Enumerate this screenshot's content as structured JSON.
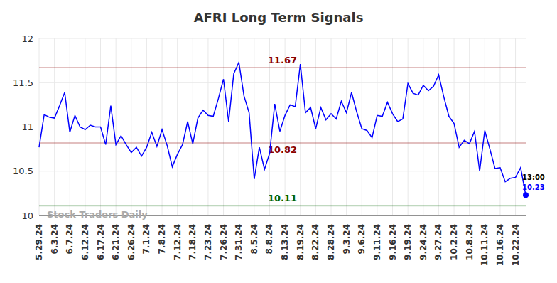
{
  "chart_data": {
    "type": "line",
    "title": "AFRI Long Term Signals",
    "watermark": "Stock Traders Daily",
    "end_label": "13:00",
    "categories": [
      "5.29.24",
      null,
      null,
      "6.3.24",
      null,
      null,
      "6.7.24",
      null,
      null,
      "6.12.24",
      null,
      null,
      "6.17.24",
      null,
      null,
      "6.21.24",
      null,
      null,
      "6.26.24",
      null,
      null,
      "7.1.24",
      null,
      null,
      "7.8.24",
      null,
      null,
      "7.12.24",
      null,
      null,
      "7.18.24",
      null,
      null,
      "7.23.24",
      null,
      null,
      "7.26.24",
      null,
      null,
      "7.31.24",
      null,
      null,
      "8.5.24",
      null,
      null,
      "8.8.24",
      null,
      null,
      "8.13.24",
      null,
      null,
      "8.19.24",
      null,
      null,
      "8.22.24",
      null,
      null,
      "8.28.24",
      null,
      null,
      "9.3.24",
      null,
      null,
      "9.6.24",
      null,
      null,
      "9.11.24",
      null,
      null,
      "9.16.24",
      null,
      null,
      "9.19.24",
      null,
      null,
      "9.24.24",
      null,
      null,
      "9.27.24",
      null,
      null,
      "10.2.24",
      null,
      null,
      "10.8.24",
      null,
      null,
      "10.11.24",
      null,
      null,
      "10.16.24",
      null,
      null,
      "10.22.24",
      null,
      null
    ],
    "values": [
      10.77,
      11.14,
      11.11,
      11.1,
      11.24,
      11.39,
      10.94,
      11.13,
      11.0,
      10.97,
      11.02,
      11.0,
      11.0,
      10.8,
      11.24,
      10.8,
      10.9,
      10.8,
      10.71,
      10.77,
      10.67,
      10.77,
      10.94,
      10.78,
      10.97,
      10.79,
      10.55,
      10.69,
      10.8,
      11.06,
      10.81,
      11.1,
      11.19,
      11.13,
      11.12,
      11.32,
      11.54,
      11.06,
      11.6,
      11.73,
      11.35,
      11.16,
      10.41,
      10.77,
      10.52,
      10.7,
      11.26,
      10.95,
      11.13,
      11.25,
      11.23,
      11.71,
      11.16,
      11.22,
      10.98,
      11.22,
      11.08,
      11.15,
      11.09,
      11.29,
      11.16,
      11.39,
      11.17,
      10.98,
      10.96,
      10.88,
      11.13,
      11.12,
      11.28,
      11.15,
      11.06,
      11.09,
      11.49,
      11.38,
      11.36,
      11.47,
      11.41,
      11.46,
      11.59,
      11.34,
      11.12,
      11.04,
      10.77,
      10.85,
      10.81,
      10.95,
      10.5,
      10.96,
      10.75,
      10.53,
      10.54,
      10.38,
      10.42,
      10.43,
      10.54,
      10.23
    ],
    "color": "#0000ff",
    "ylim": [
      10,
      12
    ],
    "yticks": [
      10,
      10.5,
      11,
      11.5,
      12
    ],
    "grid": true,
    "reference_lines": [
      {
        "value": 11.67,
        "label": "11.67",
        "color": "#8b0000",
        "position": "above"
      },
      {
        "value": 10.82,
        "label": "10.82",
        "color": "#8b0000",
        "position": "below"
      },
      {
        "value": 10.11,
        "label": "10.11",
        "color": "#006400",
        "position": "above"
      }
    ]
  }
}
